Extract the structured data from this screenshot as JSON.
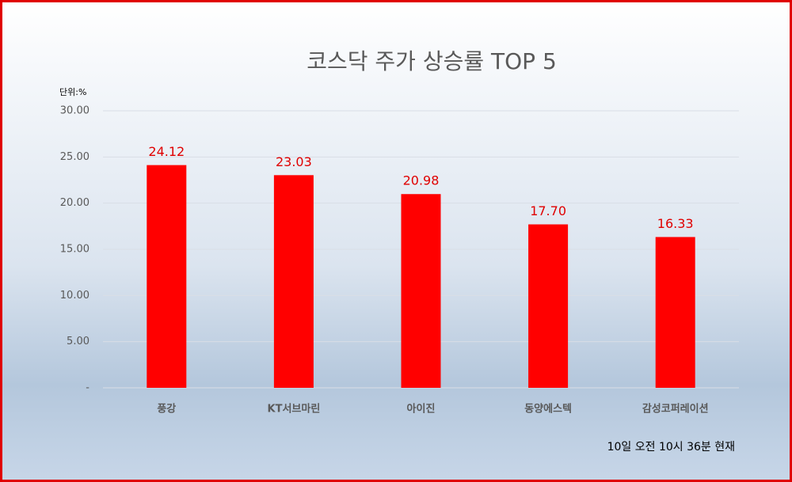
{
  "chart_data": {
    "type": "bar",
    "title": "코스닥 주가 상승률 TOP 5",
    "unit_label": "단위:%",
    "footnote": "10일  오전 10시 36분 현재",
    "categories": [
      "풍강",
      "KT서브마린",
      "아이진",
      "동양에스텍",
      "감성코퍼레이션"
    ],
    "values": [
      24.12,
      23.03,
      20.98,
      17.7,
      16.33
    ],
    "value_labels": [
      "24.12",
      "23.03",
      "20.98",
      "17.70",
      "16.33"
    ],
    "color": "#ff0000",
    "ylim": [
      0,
      30
    ],
    "yticks": [
      {
        "value": 0,
        "label": "-"
      },
      {
        "value": 5,
        "label": "5.00"
      },
      {
        "value": 10,
        "label": "10.00"
      },
      {
        "value": 15,
        "label": "15.00"
      },
      {
        "value": 20,
        "label": "20.00"
      },
      {
        "value": 25,
        "label": "25.00"
      },
      {
        "value": 30,
        "label": "30.00"
      }
    ],
    "grid": true
  }
}
